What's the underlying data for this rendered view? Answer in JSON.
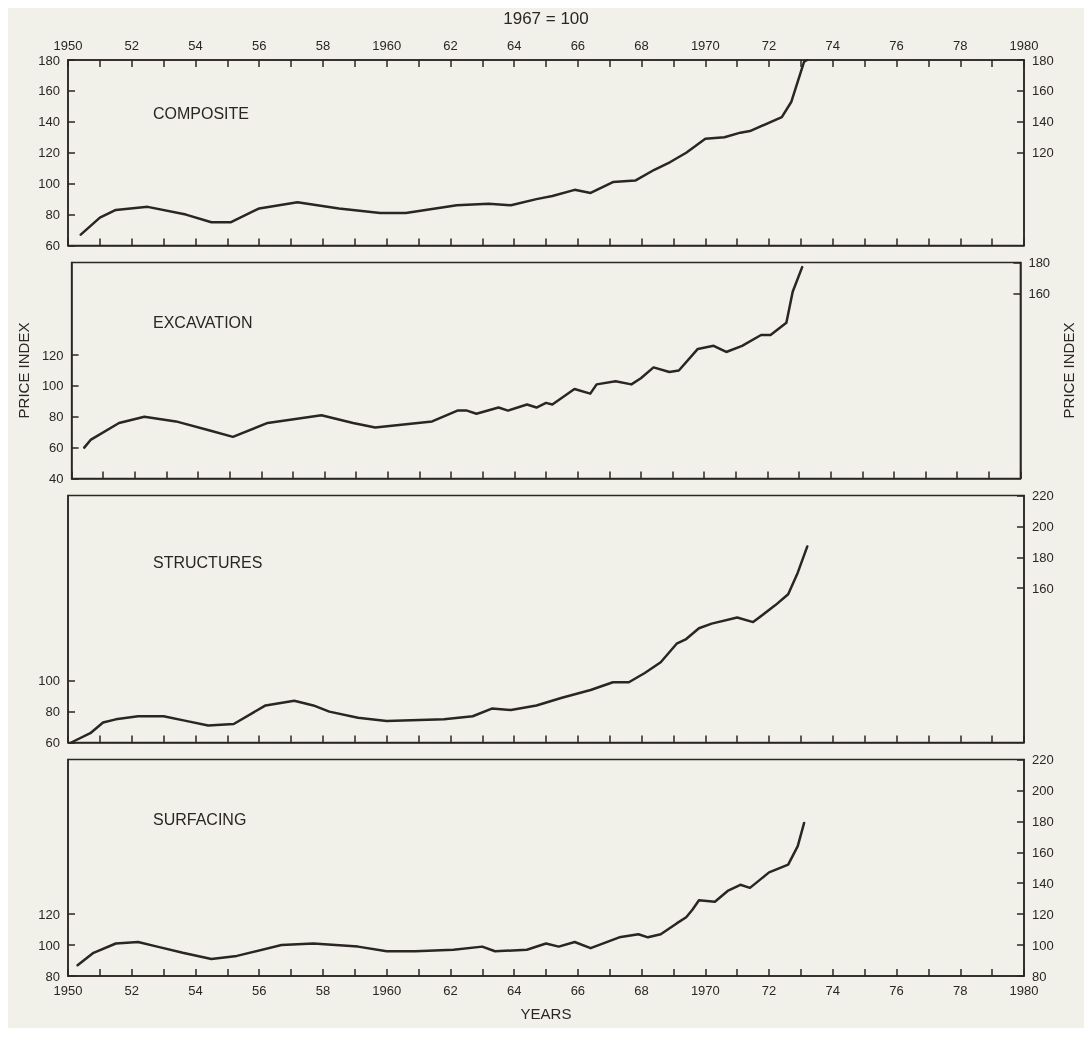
{
  "chart_data": [
    {
      "type": "line",
      "title": "COMPOSITE",
      "annotations": [
        "1967 = 100"
      ],
      "x": [
        1950.4,
        1951.0,
        1951.5,
        1952.5,
        1953.7,
        1954.5,
        1955.1,
        1956.0,
        1957.2,
        1958.5,
        1959.8,
        1960.6,
        1962.2,
        1963.2,
        1963.9,
        1964.7,
        1965.2,
        1965.9,
        1966.4,
        1967.1,
        1967.8,
        1968.4,
        1968.9,
        1969.4,
        1970.0,
        1970.6,
        1971.1,
        1971.4,
        1972.4,
        1972.7,
        1973.1,
        1973.2
      ],
      "series": [
        {
          "color": "#2b2523",
          "values": [
            67,
            78,
            83,
            85,
            80,
            75,
            75,
            84,
            88,
            84,
            81,
            81,
            86,
            87,
            86,
            90,
            92,
            96,
            94,
            101,
            102,
            109,
            114,
            120,
            129,
            130,
            133,
            134,
            143,
            153,
            179,
            180
          ]
        }
      ],
      "xlim": [
        1950,
        1980
      ],
      "xticks": [
        1950,
        1951,
        1952,
        1953,
        1954,
        1955,
        1956,
        1957,
        1958,
        1959,
        1960,
        1961,
        1962,
        1963,
        1964,
        1965,
        1966,
        1967,
        1968,
        1969,
        1970,
        1971,
        1972,
        1973,
        1974,
        1975,
        1976,
        1977,
        1978,
        1979,
        1980
      ],
      "x2lim": [
        1950,
        1980
      ],
      "x2ticks": [
        {
          "value": 1950,
          "label": "1950"
        },
        {
          "value": 1951,
          "label": null
        },
        {
          "value": 1952,
          "label": "52"
        },
        {
          "value": 1953,
          "label": null
        },
        {
          "value": 1954,
          "label": "54"
        },
        {
          "value": 1955,
          "label": null
        },
        {
          "value": 1956,
          "label": "56"
        },
        {
          "value": 1957,
          "label": null
        },
        {
          "value": 1958,
          "label": "58"
        },
        {
          "value": 1959,
          "label": null
        },
        {
          "value": 1960,
          "label": "1960"
        },
        {
          "value": 1961,
          "label": null
        },
        {
          "value": 1962,
          "label": "62"
        },
        {
          "value": 1963,
          "label": null
        },
        {
          "value": 1964,
          "label": "64"
        },
        {
          "value": 1965,
          "label": null
        },
        {
          "value": 1966,
          "label": "66"
        },
        {
          "value": 1967,
          "label": null
        },
        {
          "value": 1968,
          "label": "68"
        },
        {
          "value": 1969,
          "label": null
        },
        {
          "value": 1970,
          "label": "1970"
        },
        {
          "value": 1971,
          "label": null
        },
        {
          "value": 1972,
          "label": "72"
        },
        {
          "value": 1973,
          "label": null
        },
        {
          "value": 1974,
          "label": "74"
        },
        {
          "value": 1975,
          "label": null
        },
        {
          "value": 1976,
          "label": "76"
        },
        {
          "value": 1977,
          "label": null
        },
        {
          "value": 1978,
          "label": "78"
        },
        {
          "value": 1979,
          "label": null
        },
        {
          "value": 1980,
          "label": "1980"
        }
      ],
      "ylim": [
        60,
        180
      ],
      "yticks": [
        60,
        80,
        100,
        120,
        140,
        160,
        180
      ],
      "y2lim": [
        60,
        180
      ],
      "y2ticks": [
        120,
        140,
        160,
        180
      ],
      "tick_labels": "y"
    },
    {
      "type": "line",
      "title": "EXCAVATION",
      "ylabel": "PRICE INDEX",
      "y2label": "PRICE INDEX",
      "x": [
        1950.4,
        1950.6,
        1951.5,
        1952.3,
        1953.3,
        1954.4,
        1955.1,
        1956.2,
        1957.9,
        1958.9,
        1959.6,
        1961.4,
        1962.2,
        1962.5,
        1962.8,
        1963.5,
        1963.8,
        1964.4,
        1964.7,
        1965.0,
        1965.2,
        1965.9,
        1966.4,
        1966.6,
        1967.2,
        1967.7,
        1968.0,
        1968.4,
        1968.9,
        1969.2,
        1969.8,
        1970.3,
        1970.7,
        1971.2,
        1971.8,
        1972.1,
        1972.6,
        1972.8,
        1973.1
      ],
      "series": [
        {
          "color": "#2b2523",
          "values": [
            60,
            65,
            76,
            80,
            77,
            71,
            67,
            76,
            81,
            76,
            73,
            77,
            84,
            84,
            82,
            86,
            84,
            88,
            86,
            89,
            88,
            98,
            95,
            101,
            103,
            101,
            105,
            112,
            109,
            110,
            124,
            126,
            122,
            126,
            133,
            133,
            141,
            161,
            177
          ]
        }
      ],
      "xlim": [
        1950,
        1980
      ],
      "xticks": [
        1950,
        1951,
        1952,
        1953,
        1954,
        1955,
        1956,
        1957,
        1958,
        1959,
        1960,
        1961,
        1962,
        1963,
        1964,
        1965,
        1966,
        1967,
        1968,
        1969,
        1970,
        1971,
        1972,
        1973,
        1974,
        1975,
        1976,
        1977,
        1978,
        1979,
        1980
      ],
      "ylim": [
        40,
        180
      ],
      "yticks": [
        40,
        60,
        80,
        100,
        120
      ],
      "y2lim": [
        40,
        180
      ],
      "y2ticks": [
        160,
        180
      ],
      "tick_labels": "y"
    },
    {
      "type": "line",
      "title": "STRUCTURES",
      "x": [
        1950.1,
        1950.7,
        1951.1,
        1951.5,
        1952.2,
        1953.0,
        1953.7,
        1954.4,
        1955.2,
        1956.2,
        1957.1,
        1957.7,
        1958.2,
        1959.1,
        1960.0,
        1961.8,
        1962.7,
        1963.3,
        1963.9,
        1964.7,
        1965.5,
        1966.4,
        1967.1,
        1967.6,
        1968.1,
        1968.6,
        1969.1,
        1969.4,
        1969.8,
        1970.2,
        1971.0,
        1971.5,
        1972.2,
        1972.6,
        1972.9,
        1973.2
      ],
      "series": [
        {
          "color": "#2b2523",
          "values": [
            60,
            66,
            73,
            75,
            77,
            77,
            74,
            71,
            72,
            84,
            87,
            84,
            80,
            76,
            74,
            75,
            77,
            82,
            81,
            84,
            89,
            94,
            99,
            99,
            105,
            112,
            124,
            127,
            134,
            137,
            141,
            138,
            149,
            156,
            170,
            187
          ]
        }
      ],
      "xlim": [
        1950,
        1980
      ],
      "xticks": [
        1950,
        1951,
        1952,
        1953,
        1954,
        1955,
        1956,
        1957,
        1958,
        1959,
        1960,
        1961,
        1962,
        1963,
        1964,
        1965,
        1966,
        1967,
        1968,
        1969,
        1970,
        1971,
        1972,
        1973,
        1974,
        1975,
        1976,
        1977,
        1978,
        1979,
        1980
      ],
      "ylim": [
        60,
        220
      ],
      "yticks": [
        60,
        80,
        100
      ],
      "y2lim": [
        60,
        220
      ],
      "y2ticks": [
        160,
        180,
        200,
        220
      ],
      "tick_labels": "y"
    },
    {
      "type": "line",
      "title": "SURFACING",
      "xlabel": "YEARS",
      "x": [
        1950.3,
        1950.8,
        1951.5,
        1952.2,
        1952.8,
        1953.6,
        1954.5,
        1955.3,
        1956.7,
        1957.7,
        1959.1,
        1960.0,
        1960.9,
        1962.1,
        1963.0,
        1963.4,
        1964.4,
        1965.0,
        1965.4,
        1965.9,
        1966.4,
        1967.3,
        1967.9,
        1968.2,
        1968.6,
        1969.1,
        1969.4,
        1969.6,
        1969.8,
        1970.3,
        1970.7,
        1971.1,
        1971.4,
        1972.0,
        1972.6,
        1972.9,
        1973.1
      ],
      "series": [
        {
          "color": "#2b2523",
          "values": [
            87,
            95,
            101,
            102,
            99,
            95,
            91,
            93,
            100,
            101,
            99,
            96,
            96,
            97,
            99,
            96,
            97,
            101,
            99,
            102,
            98,
            105,
            107,
            105,
            107,
            114,
            118,
            123,
            129,
            128,
            135,
            139,
            137,
            147,
            152,
            164,
            179
          ]
        }
      ],
      "xlim": [
        1950,
        1980
      ],
      "xticks": [
        {
          "value": 1950,
          "label": "1950"
        },
        {
          "value": 1951,
          "label": null
        },
        {
          "value": 1952,
          "label": "52"
        },
        {
          "value": 1953,
          "label": null
        },
        {
          "value": 1954,
          "label": "54"
        },
        {
          "value": 1955,
          "label": null
        },
        {
          "value": 1956,
          "label": "56"
        },
        {
          "value": 1957,
          "label": null
        },
        {
          "value": 1958,
          "label": "58"
        },
        {
          "value": 1959,
          "label": null
        },
        {
          "value": 1960,
          "label": "1960"
        },
        {
          "value": 1961,
          "label": null
        },
        {
          "value": 1962,
          "label": "62"
        },
        {
          "value": 1963,
          "label": null
        },
        {
          "value": 1964,
          "label": "64"
        },
        {
          "value": 1965,
          "label": null
        },
        {
          "value": 1966,
          "label": "66"
        },
        {
          "value": 1967,
          "label": null
        },
        {
          "value": 1968,
          "label": "68"
        },
        {
          "value": 1969,
          "label": null
        },
        {
          "value": 1970,
          "label": "1970"
        },
        {
          "value": 1971,
          "label": null
        },
        {
          "value": 1972,
          "label": "72"
        },
        {
          "value": 1973,
          "label": null
        },
        {
          "value": 1974,
          "label": "74"
        },
        {
          "value": 1975,
          "label": null
        },
        {
          "value": 1976,
          "label": "76"
        },
        {
          "value": 1977,
          "label": null
        },
        {
          "value": 1978,
          "label": "78"
        },
        {
          "value": 1979,
          "label": null
        },
        {
          "value": 1980,
          "label": "1980"
        }
      ],
      "ylim": [
        80,
        220
      ],
      "yticks": [
        80,
        100,
        120
      ],
      "y2lim": [
        80,
        220
      ],
      "y2ticks": [
        80,
        100,
        120,
        140,
        160,
        180,
        200,
        220
      ]
    }
  ]
}
